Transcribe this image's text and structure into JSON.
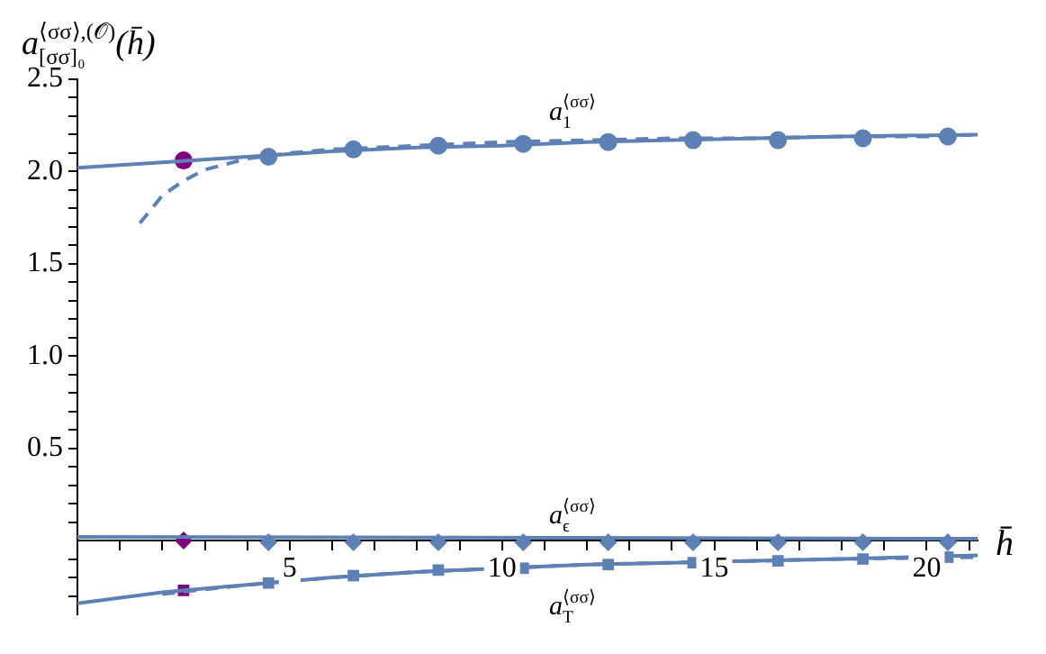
{
  "chart_data": {
    "type": "line",
    "ylabel": "a$_{[σσ]₀}$$^{⟨σσ⟩,(𝒪)}$(h̄)",
    "xlabel": "h̄",
    "xlim": [
      0,
      21.2
    ],
    "ylim": [
      -0.4,
      2.5
    ],
    "xticks": [
      {
        "value": 1,
        "label": null
      },
      {
        "value": 2,
        "label": null
      },
      {
        "value": 3,
        "label": null
      },
      {
        "value": 4,
        "label": null
      },
      5,
      {
        "value": 6,
        "label": null
      },
      {
        "value": 7,
        "label": null
      },
      {
        "value": 8,
        "label": null
      },
      {
        "value": 9,
        "label": null
      },
      10,
      {
        "value": 11,
        "label": null
      },
      {
        "value": 12,
        "label": null
      },
      {
        "value": 13,
        "label": null
      },
      {
        "value": 14,
        "label": null
      },
      15,
      {
        "value": 16,
        "label": null
      },
      {
        "value": 17,
        "label": null
      },
      {
        "value": 18,
        "label": null
      },
      {
        "value": 19,
        "label": null
      },
      20,
      {
        "value": 21,
        "label": null
      }
    ],
    "yticks": [
      {
        "value": -0.3,
        "label": null
      },
      {
        "value": -0.2,
        "label": null
      },
      {
        "value": -0.1,
        "label": null
      },
      {
        "value": 0.1,
        "label": null
      },
      {
        "value": 0.2,
        "label": null
      },
      {
        "value": 0.3,
        "label": null
      },
      {
        "value": 0.4,
        "label": null
      },
      0.5,
      {
        "value": 0.6,
        "label": null
      },
      {
        "value": 0.7,
        "label": null
      },
      {
        "value": 0.8,
        "label": null
      },
      {
        "value": 0.9,
        "label": null
      },
      {
        "value": 1.0,
        "label": "1.0"
      },
      {
        "value": 1.1,
        "label": null
      },
      {
        "value": 1.2,
        "label": null
      },
      {
        "value": 1.3,
        "label": null
      },
      {
        "value": 1.4,
        "label": null
      },
      1.5,
      {
        "value": 1.6,
        "label": null
      },
      {
        "value": 1.7,
        "label": null
      },
      {
        "value": 1.8,
        "label": null
      },
      {
        "value": 1.9,
        "label": null
      },
      {
        "value": 2.0,
        "label": "2.0"
      },
      {
        "value": 2.1,
        "label": null
      },
      {
        "value": 2.2,
        "label": null
      },
      {
        "value": 2.3,
        "label": null
      },
      {
        "value": 2.4,
        "label": null
      },
      2.5
    ],
    "grid": false,
    "legend": false,
    "annotations": [
      "a$_{1}$$^{⟨σσ⟩}$",
      "a$_{ϵ}$$^{⟨σσ⟩}$",
      "a$_{T}$$^{⟨σσ⟩}$"
    ],
    "series": [
      {
        "type": "line",
        "color": "#5e81b5",
        "line_style": "solid",
        "x": [
          0,
          2,
          4,
          6,
          8,
          10,
          12,
          14,
          16,
          18,
          21.2
        ],
        "values": [
          2.02,
          2.05,
          2.08,
          2.11,
          2.13,
          2.14,
          2.16,
          2.17,
          2.18,
          2.19,
          2.2
        ]
      },
      {
        "type": "line",
        "color": "#5e81b5",
        "line_style": "dashed",
        "x": [
          1.47,
          2,
          2.5,
          3,
          4,
          5,
          6,
          8,
          10,
          12,
          14,
          16,
          18,
          20,
          21.2
        ],
        "values": [
          1.72,
          1.87,
          1.95,
          2.01,
          2.07,
          2.1,
          2.12,
          2.14,
          2.16,
          2.17,
          2.18,
          2.18,
          2.19,
          2.19,
          2.2
        ]
      },
      {
        "type": "scatter",
        "color": "#5e81b5",
        "marker": "circle",
        "x": [
          4.5,
          6.5,
          8.5,
          10.5,
          12.5,
          14.5,
          16.5,
          18.5,
          20.5
        ],
        "values": [
          2.08,
          2.12,
          2.14,
          2.15,
          2.16,
          2.17,
          2.17,
          2.18,
          2.19
        ]
      },
      {
        "type": "scatter",
        "color": "#800080",
        "marker": "circle",
        "x": [
          2.5
        ],
        "values": [
          2.06
        ]
      },
      {
        "type": "line",
        "color": "#5e81b5",
        "line_style": "solid",
        "x": [
          0,
          21.2
        ],
        "values": [
          0.02,
          0.01
        ]
      },
      {
        "type": "scatter",
        "color": "#5e81b5",
        "marker": "diamond",
        "x": [
          4.5,
          6.5,
          8.5,
          10.5,
          12.5,
          14.5,
          16.5,
          18.5,
          20.5
        ],
        "values": [
          -0.01,
          -0.01,
          -0.01,
          -0.01,
          -0.01,
          -0.01,
          -0.01,
          -0.01,
          -0.01
        ]
      },
      {
        "type": "scatter",
        "color": "#800080",
        "marker": "diamond",
        "x": [
          2.5
        ],
        "values": [
          0
        ]
      },
      {
        "type": "line",
        "color": "#5e81b5",
        "line_style": "solid",
        "x": [
          0,
          2,
          4,
          6,
          8,
          10,
          12,
          14,
          16,
          18,
          21.2
        ],
        "values": [
          -0.34,
          -0.28,
          -0.24,
          -0.2,
          -0.17,
          -0.15,
          -0.13,
          -0.12,
          -0.11,
          -0.1,
          -0.08
        ]
      },
      {
        "type": "line",
        "color": "#5e81b5",
        "line_style": "dashed",
        "x": [
          2,
          4,
          6,
          8,
          10,
          12,
          14,
          16,
          18,
          21.2
        ],
        "values": [
          -0.29,
          -0.24,
          -0.2,
          -0.17,
          -0.15,
          -0.13,
          -0.12,
          -0.11,
          -0.1,
          -0.09
        ]
      },
      {
        "type": "scatter",
        "color": "#5e81b5",
        "marker": "square",
        "x": [
          4.5,
          6.5,
          8.5,
          10.5,
          12.5,
          14.5,
          16.5,
          18.5,
          20.5
        ],
        "values": [
          -0.23,
          -0.19,
          -0.16,
          -0.15,
          -0.13,
          -0.12,
          -0.11,
          -0.1,
          -0.09
        ]
      },
      {
        "type": "scatter",
        "color": "#800080",
        "marker": "square",
        "x": [
          2.5
        ],
        "values": [
          -0.27
        ]
      }
    ]
  }
}
